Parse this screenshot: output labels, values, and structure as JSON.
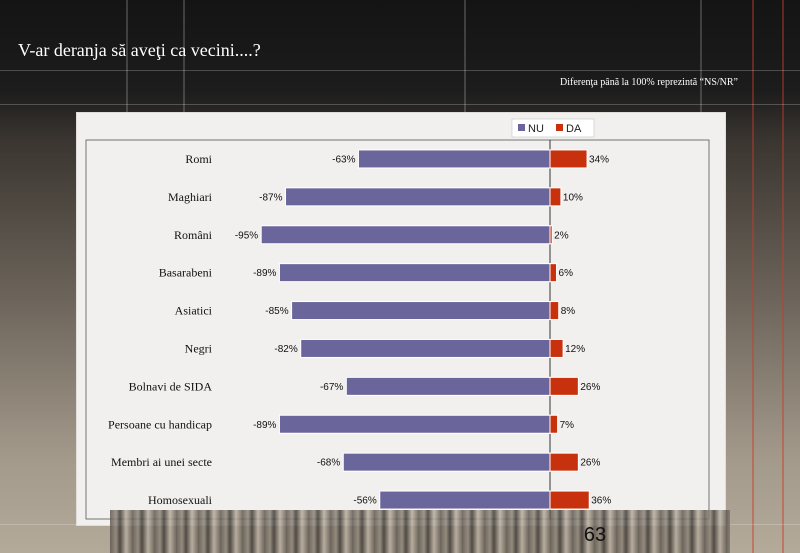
{
  "slide": {
    "title": "V-ar deranja să aveţi ca vecini....?",
    "note": "Diferenţa până la 100% reprezintă  “NS/NR”",
    "page_number": "63"
  },
  "colors": {
    "nu": "#6a669c",
    "da": "#c8310d"
  },
  "chart_data": {
    "type": "bar",
    "orientation": "horizontal",
    "stacked_diverging": true,
    "categories": [
      "Romi",
      "Maghiari",
      "Români",
      "Basarabeni",
      "Asiatici",
      "Negri",
      "Bolnavi de SIDA",
      "Persoane cu handicap",
      "Membri ai unei secte",
      "Homosexuali"
    ],
    "series": [
      {
        "name": "NU",
        "values": [
          -63,
          -87,
          -95,
          -89,
          -85,
          -82,
          -67,
          -89,
          -68,
          -56
        ]
      },
      {
        "name": "DA",
        "values": [
          34,
          10,
          2,
          6,
          8,
          12,
          26,
          7,
          26,
          36
        ]
      }
    ],
    "value_labels": {
      "NU": [
        "-63%",
        "-87%",
        "-95%",
        "-89%",
        "-85%",
        "-82%",
        "-67%",
        "-89%",
        "-68%",
        "-56%"
      ],
      "DA": [
        "34%",
        "10%",
        "2%",
        "6%",
        "8%",
        "12%",
        "26%",
        "7%",
        "26%",
        "36%"
      ]
    },
    "xlim": [
      -100,
      100
    ],
    "legend_position": "top",
    "grid": false
  }
}
